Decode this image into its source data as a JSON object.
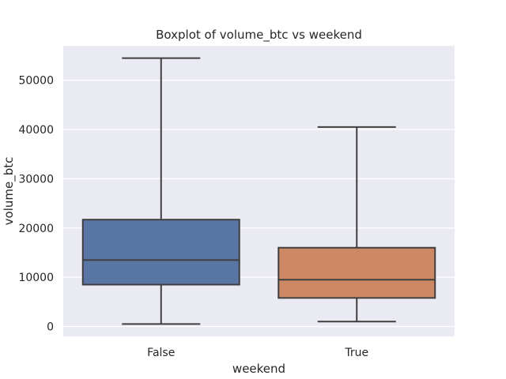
{
  "chart_data": {
    "type": "boxplot",
    "title": "Boxplot of volume_btc vs weekend",
    "xlabel": "weekend",
    "ylabel": "volume_btc",
    "categories": [
      "False",
      "True"
    ],
    "ylim": [
      -2000,
      57000
    ],
    "yticks": [
      0,
      10000,
      20000,
      30000,
      40000,
      50000
    ],
    "ytick_labels": [
      "0",
      "10000",
      "20000",
      "30000",
      "40000",
      "50000"
    ],
    "grid": true,
    "boxes": [
      {
        "category": "False",
        "whisker_low": 500,
        "q1": 8500,
        "median": 13500,
        "q3": 21700,
        "whisker_high": 54500,
        "color": "#5975a4"
      },
      {
        "category": "True",
        "whisker_low": 1000,
        "q1": 5800,
        "median": 9500,
        "q3": 16000,
        "whisker_high": 40500,
        "color": "#cc8963"
      }
    ],
    "colors": {
      "background": "#eaeaf2",
      "grid": "#ffffff",
      "line": "#3f3f3f",
      "text": "#262626"
    }
  }
}
